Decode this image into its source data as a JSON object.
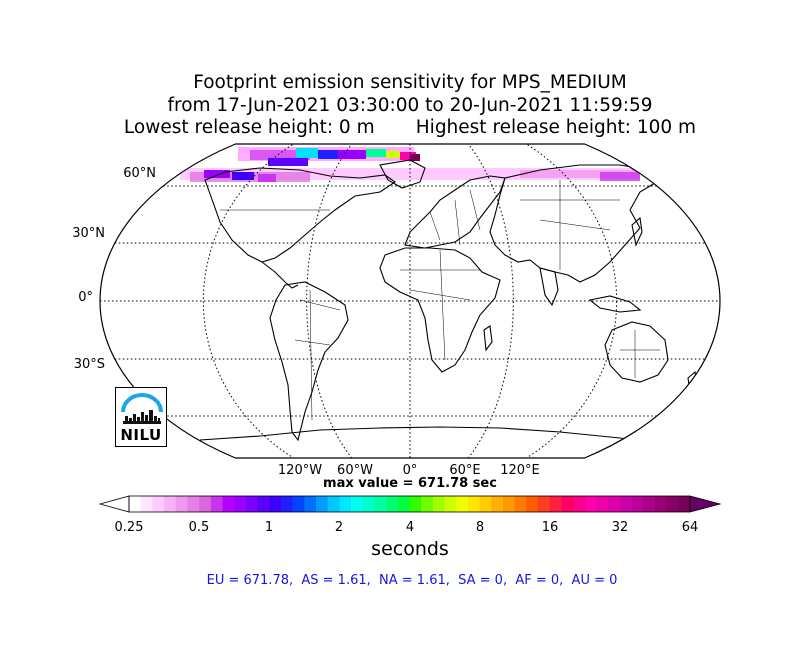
{
  "title": {
    "line1": "Footprint emission sensitivity for MPS_MEDIUM",
    "line2": "from 17-Jun-2021 03:30:00 to 20-Jun-2021 11:59:59",
    "line3": "Lowest release height: 0 m       Highest release height: 100 m"
  },
  "map": {
    "projection": "Robinson",
    "lat_labels": [
      "60°N",
      "30°N",
      "0°",
      "30°S"
    ],
    "lon_labels": [
      "120°W",
      "60°W",
      "0°",
      "60°E",
      "120°E"
    ],
    "gridlines": "dotted",
    "logo_text": "NILU"
  },
  "max_value_text": "max value = 671.78 sec",
  "colorbar": {
    "ticks": [
      "0.25",
      "0.5",
      "1",
      "2",
      "4",
      "8",
      "16",
      "32",
      "64"
    ],
    "label": "seconds",
    "colors": [
      "#ffffff",
      "#ffe6ff",
      "#ffccff",
      "#f7b3f7",
      "#ef99ef",
      "#e680e6",
      "#dd66dd",
      "#cc33ee",
      "#b300ff",
      "#9900ff",
      "#7a00ff",
      "#5c00ff",
      "#3d00ff",
      "#1f1fff",
      "#0044ff",
      "#0070ff",
      "#009cff",
      "#00c8ff",
      "#00e6ff",
      "#00fff0",
      "#00ffcc",
      "#00ffa0",
      "#00ff70",
      "#00ff40",
      "#30ff00",
      "#70ff00",
      "#a0ff00",
      "#ccff00",
      "#f0ff00",
      "#ffe600",
      "#ffcc00",
      "#ffb000",
      "#ff9900",
      "#ff7a00",
      "#ff5c00",
      "#ff3d20",
      "#ff1f40",
      "#ff0066",
      "#ff0088",
      "#ff00aa",
      "#ee00aa",
      "#dd00aa",
      "#cc00aa",
      "#bb0099",
      "#aa0088",
      "#990077",
      "#880066",
      "#770055"
    ],
    "min_extension_color": "#ffffff",
    "max_extension_color": "#660066"
  },
  "stats_text": "EU = 671.78,  AS = 1.61,  NA = 1.61,  SA = 0,  AF = 0,  AU = 0"
}
